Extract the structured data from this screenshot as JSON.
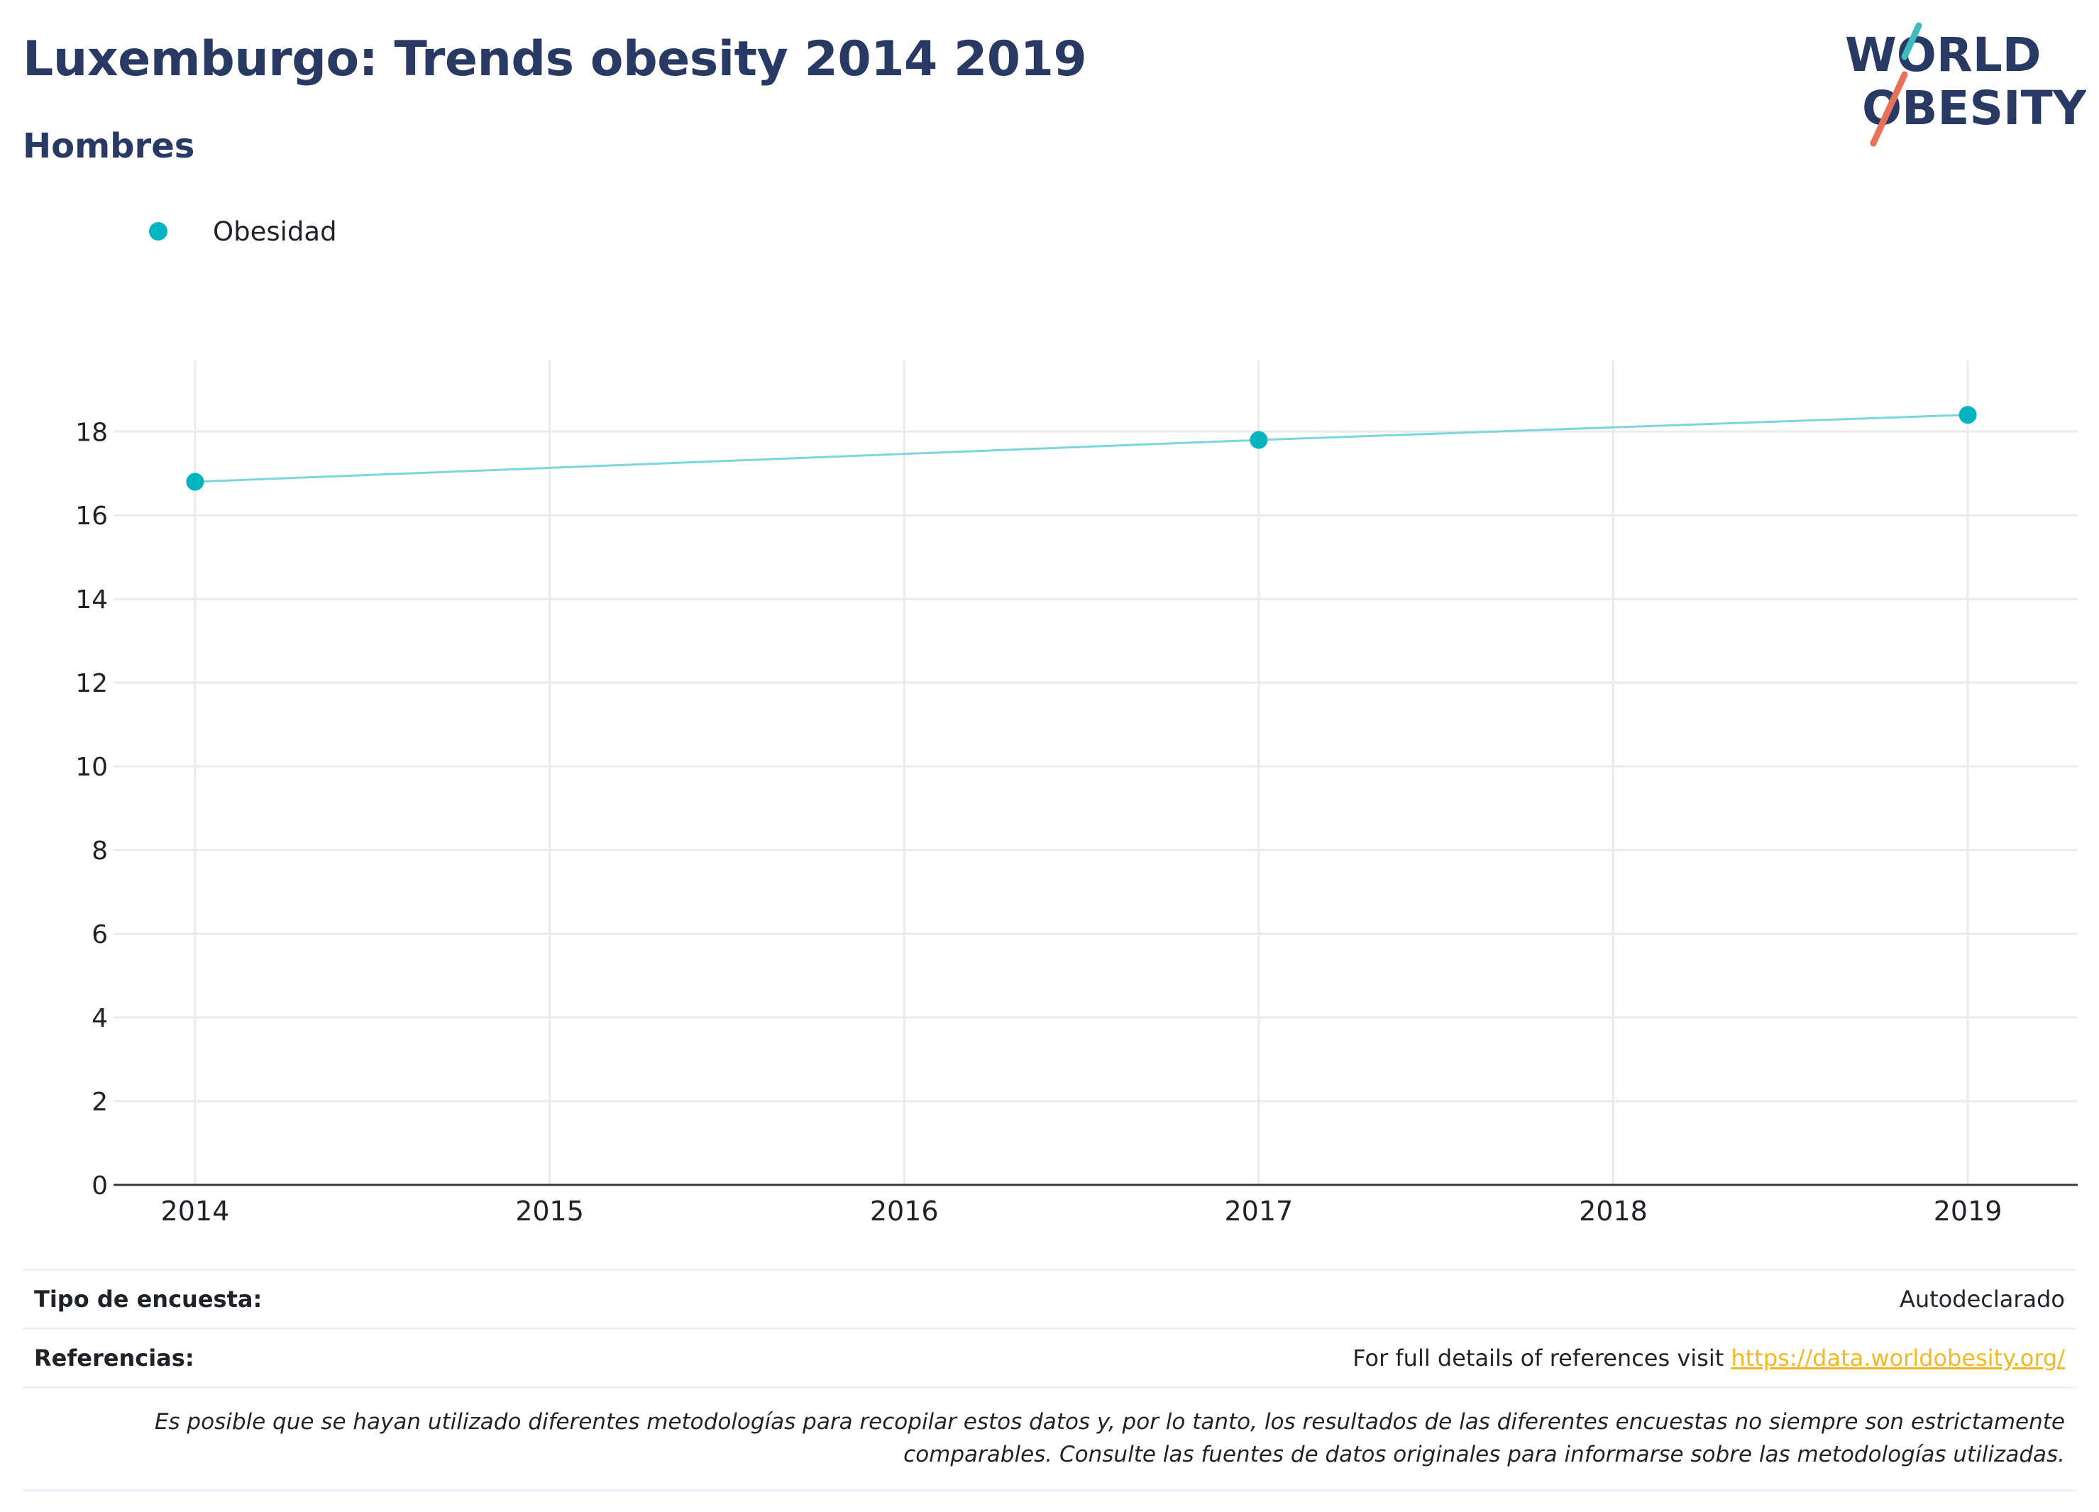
{
  "header": {
    "title": "Luxemburgo: Trends obesity 2014 2019",
    "subtitle": "Hombres"
  },
  "logo": {
    "line1": "WORLD",
    "line2": "OBESITY"
  },
  "colors": {
    "series": "#00b4c0",
    "series_line": "#7dd6dc",
    "title": "#283a64",
    "logo_teal": "#3dbbbd",
    "logo_coral": "#e8715a",
    "link": "#f2b824"
  },
  "chart_data": {
    "type": "line",
    "x": [
      2014,
      2017,
      2019
    ],
    "series": [
      {
        "name": "Obesidad",
        "values": [
          16.8,
          17.8,
          18.4
        ]
      }
    ],
    "xticks": [
      "2014",
      "2015",
      "2016",
      "2017",
      "2018",
      "2019"
    ],
    "yticks": [
      "0",
      "2",
      "4",
      "6",
      "8",
      "10",
      "12",
      "14",
      "16",
      "18"
    ],
    "xlim": [
      2013.77,
      2019.31
    ],
    "ylim": [
      0,
      19.7
    ],
    "grid": true,
    "legend": "top-left"
  },
  "footer": {
    "survey_label": "Tipo de encuesta:",
    "survey_value": "Autodeclarado",
    "refs_label": "Referencias:",
    "refs_text": "For full details of references visit",
    "refs_link": "https://data.worldobesity.org/",
    "note_line1": "Es posible que se hayan utilizado diferentes metodologías para recopilar estos datos y, por lo tanto, los resultados de las diferentes encuestas no siempre son estrictamente",
    "note_line2": "comparables. Consulte las fuentes de datos originales para informarse sobre las metodologías utilizadas."
  }
}
